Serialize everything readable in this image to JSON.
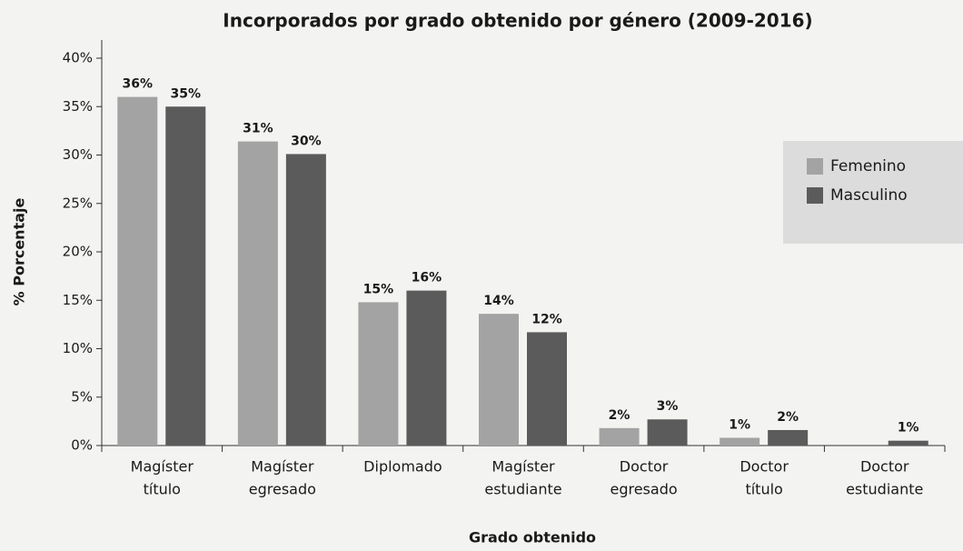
{
  "chart_data": {
    "type": "bar",
    "title": "Incorporados por grado obtenido por género (2009-2016)",
    "x_label": "Grado obtenido",
    "y_label": "% Porcentaje",
    "categories": [
      [
        "Magíster",
        "título"
      ],
      [
        "Magíster",
        "egresado"
      ],
      [
        "Diplomado"
      ],
      [
        "Magíster",
        "estudiante"
      ],
      [
        "Doctor",
        "egresado"
      ],
      [
        "Doctor",
        "título"
      ],
      [
        "Doctor",
        "estudiante"
      ]
    ],
    "series": [
      {
        "name": "Femenino",
        "color": "#a3a3a3",
        "values": [
          36,
          31.4,
          14.8,
          13.6,
          1.8,
          0.8,
          null
        ],
        "value_labels": [
          "36%",
          "31%",
          "15%",
          "14%",
          "2%",
          "1%",
          null
        ]
      },
      {
        "name": "Masculino",
        "color": "#5b5b5b",
        "values": [
          35,
          30.1,
          16,
          11.7,
          2.7,
          1.6,
          0.5
        ],
        "value_labels": [
          "35%",
          "30%",
          "16%",
          "12%",
          "3%",
          "2%",
          "1%"
        ]
      }
    ],
    "ylim": [
      0,
      40
    ],
    "yticks": [
      {
        "value": 0,
        "label": "0%"
      },
      {
        "value": 5,
        "label": "5%"
      },
      {
        "value": 10,
        "label": "10%"
      },
      {
        "value": 15,
        "label": "15%"
      },
      {
        "value": 20,
        "label": "20%"
      },
      {
        "value": 25,
        "label": "25%"
      },
      {
        "value": 30,
        "label": "30%"
      },
      {
        "value": 35,
        "label": "35%"
      },
      {
        "value": 40,
        "label": "40%"
      }
    ],
    "legend": "right"
  }
}
